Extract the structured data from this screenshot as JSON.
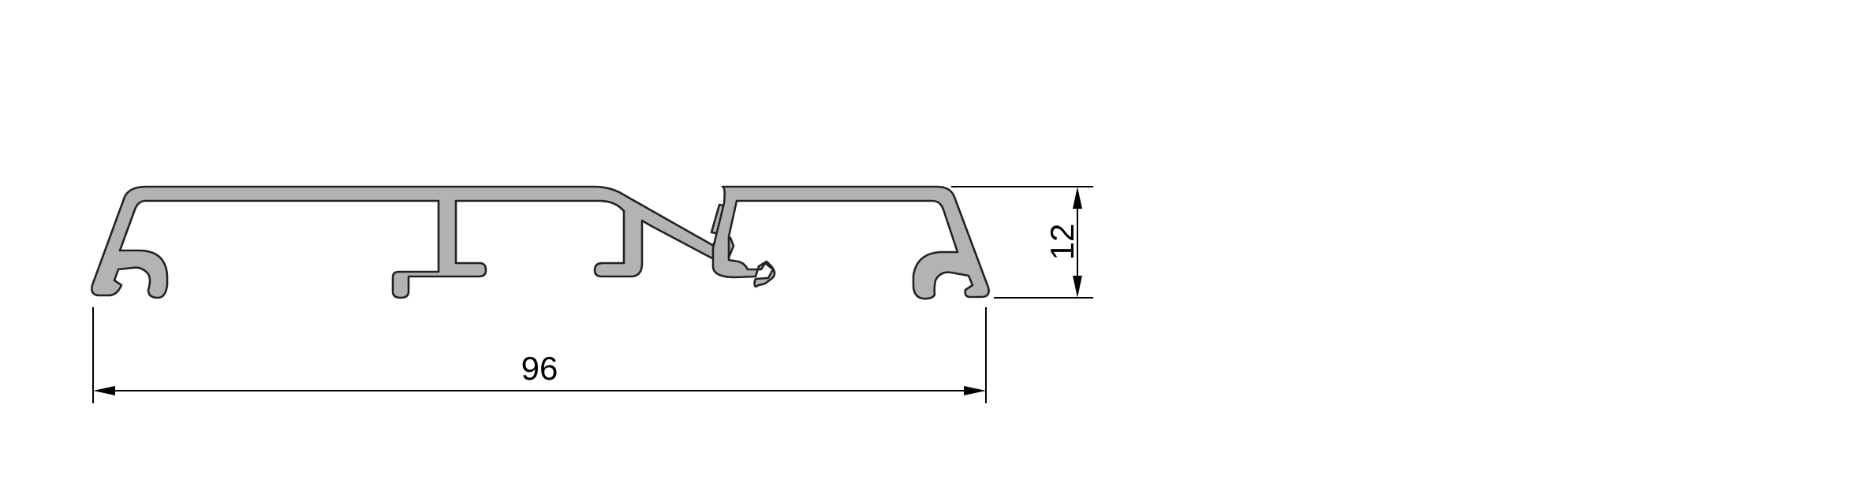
{
  "dimensions": {
    "width_label": "96",
    "height_label": "12"
  },
  "colors": {
    "profile_fill": "#b3b3b3",
    "profile_stroke": "#222222",
    "dimension_lines": "#000000",
    "background": "#ffffff"
  }
}
